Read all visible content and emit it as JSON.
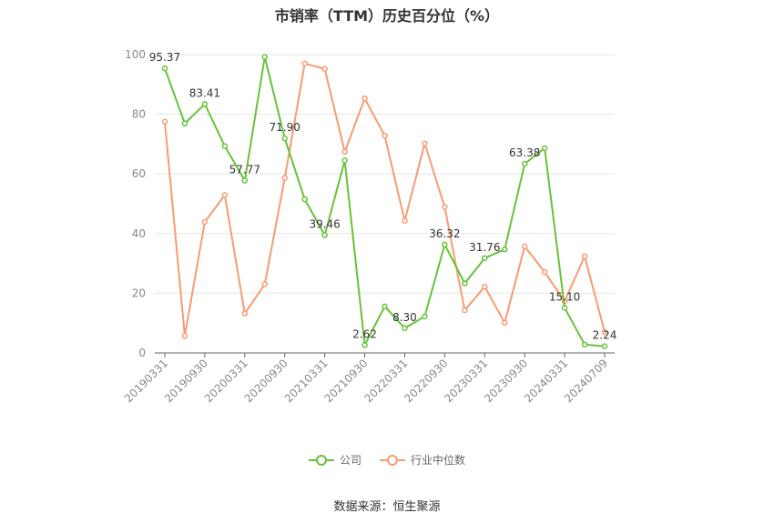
{
  "title": "市销率（TTM）历史百分位（%）",
  "source": "数据来源：恒生聚源",
  "colors": {
    "company": "#67c23a",
    "industry": "#f79b72",
    "grid": "#e6e6e6",
    "axis": "#666666",
    "label": "#333333"
  },
  "chart_data": {
    "type": "line",
    "title": "市销率（TTM）历史百分位（%）",
    "x": [
      "20190331",
      "20190630",
      "20190930",
      "20191231",
      "20200331",
      "20200630",
      "20200930",
      "20201231",
      "20210331",
      "20210630",
      "20210930",
      "20211231",
      "20220331",
      "20220630",
      "20220930",
      "20221231",
      "20230331",
      "20230630",
      "20230930",
      "20231231",
      "20240331",
      "20240630",
      "20240709"
    ],
    "x_tick_labels": [
      "20190331",
      "20190930",
      "20200331",
      "20200930",
      "20210331",
      "20210930",
      "20220331",
      "20220930",
      "20230331",
      "20230930",
      "20240331",
      "20240709"
    ],
    "ylim": [
      0,
      100
    ],
    "y_ticks": [
      0,
      20,
      40,
      60,
      80,
      100
    ],
    "grid": true,
    "legend_position": "bottom",
    "series": [
      {
        "name": "公司",
        "color": "#67c23a",
        "values": [
          95.37,
          76.9,
          83.41,
          69.3,
          57.77,
          99.2,
          71.9,
          51.5,
          39.46,
          64.5,
          2.62,
          15.6,
          8.3,
          12.2,
          36.32,
          23.3,
          31.76,
          34.7,
          63.38,
          68.6,
          15.1,
          2.8,
          2.24
        ],
        "data_labels": [
          {
            "index": 0,
            "text": "95.37"
          },
          {
            "index": 2,
            "text": "83.41"
          },
          {
            "index": 4,
            "text": "57.77"
          },
          {
            "index": 6,
            "text": "71.90"
          },
          {
            "index": 8,
            "text": "39.46"
          },
          {
            "index": 10,
            "text": "2.62"
          },
          {
            "index": 12,
            "text": "8.30"
          },
          {
            "index": 14,
            "text": "36.32"
          },
          {
            "index": 16,
            "text": "31.76"
          },
          {
            "index": 18,
            "text": "63.38"
          },
          {
            "index": 20,
            "text": "15.10"
          },
          {
            "index": 22,
            "text": "2.24"
          }
        ]
      },
      {
        "name": "行业中位数",
        "color": "#f79b72",
        "values": [
          77.5,
          5.7,
          43.9,
          52.9,
          13.2,
          23.0,
          58.6,
          97.0,
          95.2,
          67.4,
          85.3,
          72.8,
          44.3,
          70.2,
          48.9,
          14.3,
          22.2,
          10.1,
          35.7,
          27.1,
          17.3,
          32.4,
          7.0
        ]
      }
    ]
  }
}
